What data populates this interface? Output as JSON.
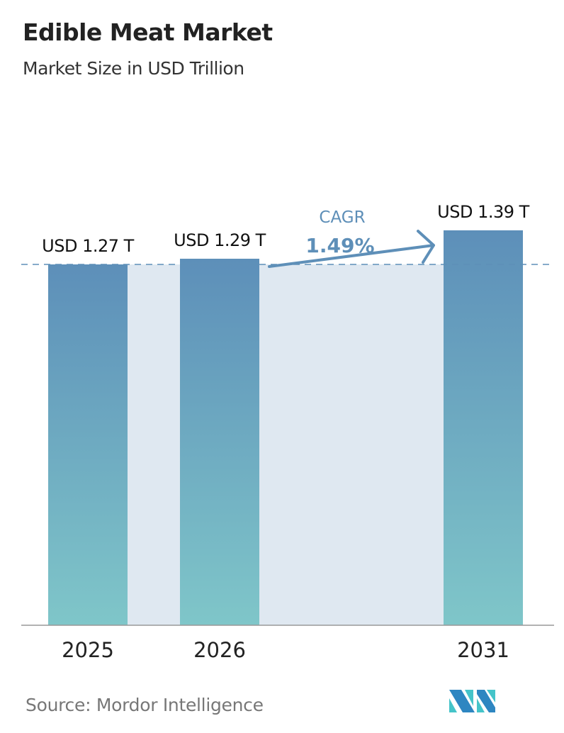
{
  "title": "Edible Meat Market",
  "subtitle": "Market Size in USD Trillion",
  "source": "Source:  Mordor Intelligence",
  "logo_text": "MI",
  "colors": {
    "bar_top": "#5d8fb9",
    "bar_bottom": "#7fc6c9",
    "shade": "#dfe8f1",
    "cagr": "#5e8fb8",
    "dash": "#5e8fb8"
  },
  "chart_data": {
    "type": "bar",
    "categories": [
      "2025",
      "2026",
      "2031"
    ],
    "values": [
      1.27,
      1.29,
      1.39
    ],
    "data_labels": [
      "USD 1.27 T",
      "USD 1.29 T",
      "USD 1.39 T"
    ],
    "cagr_label": "CAGR",
    "cagr_value": "1.49%",
    "title": "Edible Meat Market",
    "ylabel": "Market Size in USD Trillion",
    "grid": false
  }
}
